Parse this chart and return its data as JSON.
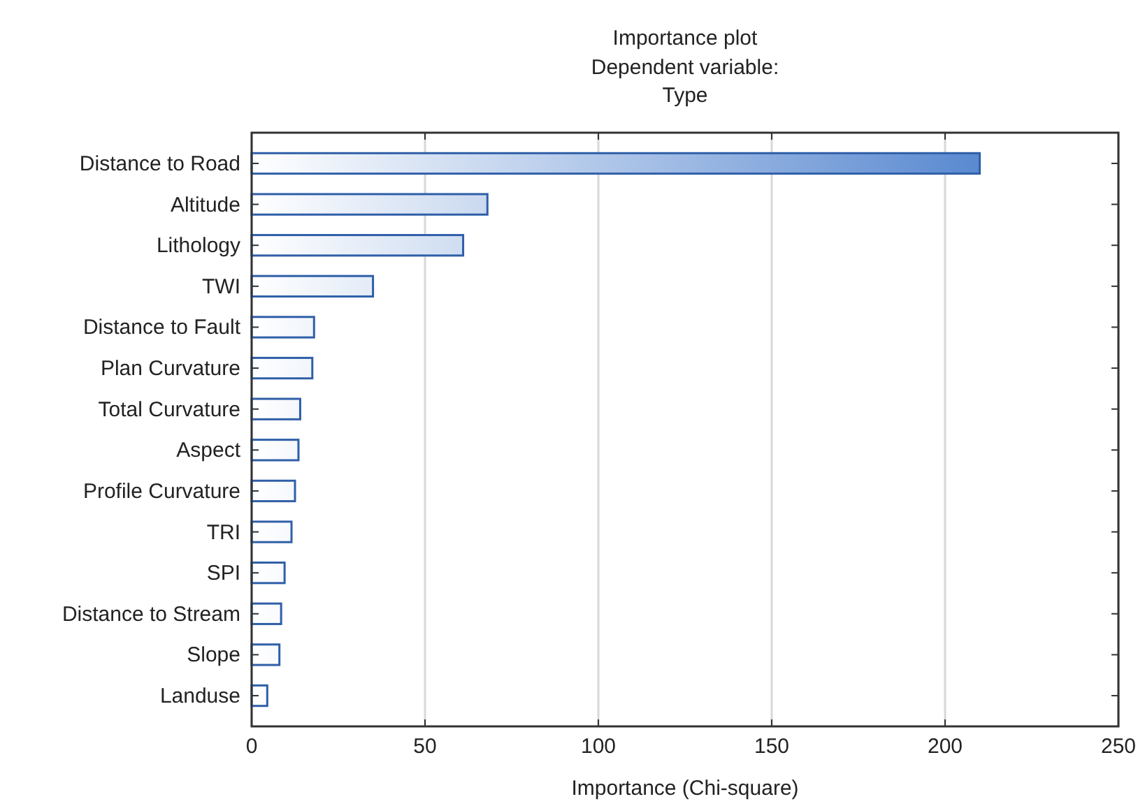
{
  "chart_data": {
    "type": "bar",
    "orientation": "horizontal",
    "title": "Importance plot",
    "subtitle": "Dependent variable:\nType",
    "xlabel": "Importance (Chi-square)",
    "categories": [
      "Distance to Road",
      "Altitude",
      "Lithology",
      "TWI",
      "Distance to Fault",
      "Plan Curvature",
      "Total Curvature",
      "Aspect",
      "Profile Curvature",
      "TRI",
      "SPI",
      "Distance to Stream",
      "Slope",
      "Landuse"
    ],
    "values": [
      210,
      68,
      61,
      35,
      18,
      17.5,
      14,
      13.5,
      12.5,
      11.5,
      9.5,
      8.5,
      8,
      4.5
    ],
    "color": "#2f5fa8",
    "xlim": [
      0,
      250
    ],
    "xticks": [
      0,
      50,
      100,
      150,
      200,
      250
    ],
    "grid": "x"
  }
}
